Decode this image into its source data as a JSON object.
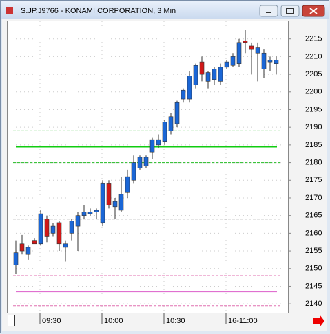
{
  "chart_data": {
    "type": "candlestick",
    "title": "S.JP.J9766 - KONAMI CORPORATION, 3 Min",
    "categories": [
      null,
      null,
      null,
      null,
      "09:30",
      null,
      null,
      null,
      null,
      null,
      null,
      null,
      null,
      null,
      "10:00",
      null,
      null,
      null,
      null,
      null,
      null,
      null,
      null,
      null,
      "10:30",
      null,
      null,
      null,
      null,
      null,
      null,
      null,
      null,
      null,
      "16-11:00",
      null,
      null,
      null,
      null,
      null,
      null,
      null,
      null
    ],
    "open": [
      2151,
      2157,
      2154,
      2158,
      2157,
      2164,
      2160,
      2163,
      2156,
      2160,
      2162,
      2165,
      2165.5,
      2166,
      2163,
      2174,
      2167.5,
      2166.5,
      2171.5,
      2175,
      2178.5,
      2179,
      2183,
      2185,
      2186,
      2189,
      2191,
      2198,
      2198,
      2202,
      2208.5,
      2203,
      2203.5,
      2203,
      2207,
      2207.5,
      2208,
      2214.5,
      2213,
      2211,
      2206.5,
      2208.5,
      2208
    ],
    "high": [
      2158,
      2159.5,
      2156.5,
      2158.5,
      2166.5,
      2165,
      2163,
      2163.5,
      2158,
      2164,
      2166,
      2168,
      2167,
      2167,
      2175,
      2175,
      2170,
      2176,
      2178,
      2182,
      2182,
      2182,
      2187,
      2188,
      2192,
      2194,
      2197.5,
      2201,
      2206,
      2208,
      2210,
      2206,
      2207,
      2208,
      2209,
      2211,
      2215,
      2217.5,
      2214,
      2214,
      2212,
      2210,
      2210
    ],
    "low": [
      2148.5,
      2154,
      2152.5,
      2157,
      2156.5,
      2157.5,
      2159,
      2155,
      2152,
      2158,
      2155,
      2164,
      2165,
      2164,
      2162,
      2167,
      2164,
      2166,
      2170,
      2174,
      2178,
      2178.5,
      2181,
      2184,
      2185,
      2188,
      2190,
      2197,
      2197,
      2201,
      2203,
      2201,
      2202,
      2202,
      2206.5,
      2207,
      2207,
      2211,
      2205,
      2203,
      2204,
      2206,
      2205
    ],
    "close": [
      2154.5,
      2155,
      2156,
      2157,
      2165.5,
      2159,
      2162,
      2157,
      2157,
      2163.5,
      2165,
      2166,
      2166,
      2166.5,
      2174,
      2168,
      2169,
      2171,
      2176,
      2180,
      2181.5,
      2181.5,
      2186.5,
      2186.5,
      2191.5,
      2193,
      2197,
      2200.5,
      2204.5,
      2207.5,
      2205,
      2205.5,
      2206.5,
      2207,
      2208.5,
      2210,
      2214,
      2214,
      2212,
      2212.5,
      2211,
      2209,
      2209
    ],
    "up_color": "#1a66d6",
    "down_color": "#d01818",
    "ylim": [
      2137.5,
      2220
    ],
    "yticks": [
      2140,
      2145,
      2150,
      2155,
      2160,
      2165,
      2170,
      2175,
      2180,
      2185,
      2190,
      2195,
      2200,
      2205,
      2210,
      2215
    ],
    "grid": true,
    "levels": [
      {
        "value": 2189,
        "color": "#22bb22",
        "style": "dashed"
      },
      {
        "value": 2184.5,
        "color": "#11cc11",
        "style": "solid"
      },
      {
        "value": 2180,
        "color": "#22bb22",
        "style": "dashed"
      },
      {
        "value": 2164,
        "color": "#999999",
        "style": "dashed"
      },
      {
        "value": 2148,
        "color": "#e070b0",
        "style": "dashed"
      },
      {
        "value": 2143.5,
        "color": "#e070d0",
        "style": "solid"
      },
      {
        "value": 2139.5,
        "color": "#e070b0",
        "style": "dashed"
      }
    ]
  }
}
